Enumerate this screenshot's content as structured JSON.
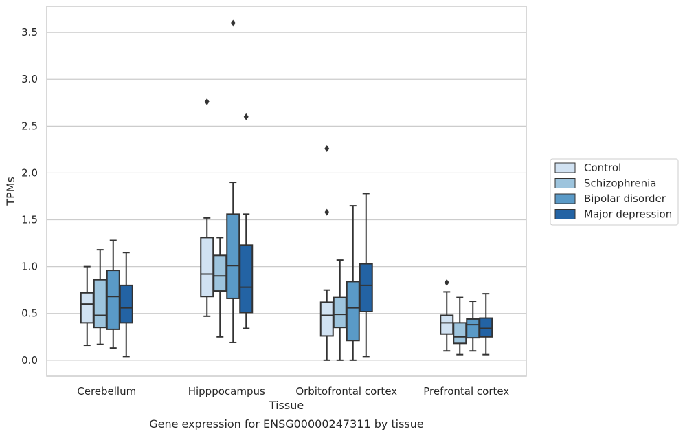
{
  "chart_data": {
    "type": "box",
    "title": "",
    "caption": "Gene expression for ENSG00000247311 by tissue",
    "xlabel": "Tissue",
    "ylabel": "TPMs",
    "ylim": [
      -0.17,
      3.78
    ],
    "yticks": [
      0.0,
      0.5,
      1.0,
      1.5,
      2.0,
      2.5,
      3.0,
      3.5
    ],
    "ytick_labels": [
      "0.0",
      "0.5",
      "1.0",
      "1.5",
      "2.0",
      "2.5",
      "3.0",
      "3.5"
    ],
    "grid": "horizontal",
    "legend_position": "right",
    "categories": [
      "Cerebellum",
      "Hipppocampus",
      "Orbitofrontal cortex",
      "Prefrontal cortex"
    ],
    "series": [
      {
        "name": "Control",
        "color": "#d1e2f2",
        "boxes": [
          {
            "whislo": 0.16,
            "q1": 0.4,
            "med": 0.6,
            "q3": 0.72,
            "whishi": 1.0,
            "fliers": []
          },
          {
            "whislo": 0.47,
            "q1": 0.68,
            "med": 0.92,
            "q3": 1.31,
            "whishi": 1.52,
            "fliers": [
              2.76
            ]
          },
          {
            "whislo": 0.0,
            "q1": 0.26,
            "med": 0.48,
            "q3": 0.62,
            "whishi": 0.75,
            "fliers": [
              1.58,
              2.26
            ]
          },
          {
            "whislo": 0.1,
            "q1": 0.28,
            "med": 0.4,
            "q3": 0.48,
            "whishi": 0.73,
            "fliers": [
              0.83
            ]
          }
        ]
      },
      {
        "name": "Schizophrenia",
        "color": "#9dc4dd",
        "boxes": [
          {
            "whislo": 0.17,
            "q1": 0.35,
            "med": 0.48,
            "q3": 0.86,
            "whishi": 1.18,
            "fliers": []
          },
          {
            "whislo": 0.25,
            "q1": 0.74,
            "med": 0.9,
            "q3": 1.12,
            "whishi": 1.31,
            "fliers": []
          },
          {
            "whislo": 0.0,
            "q1": 0.35,
            "med": 0.49,
            "q3": 0.67,
            "whishi": 1.07,
            "fliers": []
          },
          {
            "whislo": 0.06,
            "q1": 0.18,
            "med": 0.25,
            "q3": 0.4,
            "whishi": 0.67,
            "fliers": []
          }
        ]
      },
      {
        "name": "Bipolar disorder",
        "color": "#5a9ac7",
        "boxes": [
          {
            "whislo": 0.13,
            "q1": 0.33,
            "med": 0.68,
            "q3": 0.96,
            "whishi": 1.28,
            "fliers": []
          },
          {
            "whislo": 0.19,
            "q1": 0.66,
            "med": 1.01,
            "q3": 1.56,
            "whishi": 1.9,
            "fliers": [
              3.6
            ]
          },
          {
            "whislo": 0.0,
            "q1": 0.21,
            "med": 0.56,
            "q3": 0.84,
            "whishi": 1.65,
            "fliers": []
          },
          {
            "whislo": 0.1,
            "q1": 0.24,
            "med": 0.38,
            "q3": 0.44,
            "whishi": 0.63,
            "fliers": []
          }
        ]
      },
      {
        "name": "Major depression",
        "color": "#2363a4",
        "boxes": [
          {
            "whislo": 0.04,
            "q1": 0.4,
            "med": 0.56,
            "q3": 0.8,
            "whishi": 1.15,
            "fliers": []
          },
          {
            "whislo": 0.34,
            "q1": 0.51,
            "med": 0.78,
            "q3": 1.23,
            "whishi": 1.56,
            "fliers": [
              2.6
            ]
          },
          {
            "whislo": 0.04,
            "q1": 0.52,
            "med": 0.8,
            "q3": 1.03,
            "whishi": 1.78,
            "fliers": []
          },
          {
            "whislo": 0.06,
            "q1": 0.25,
            "med": 0.34,
            "q3": 0.45,
            "whishi": 0.71,
            "fliers": []
          }
        ]
      }
    ]
  }
}
